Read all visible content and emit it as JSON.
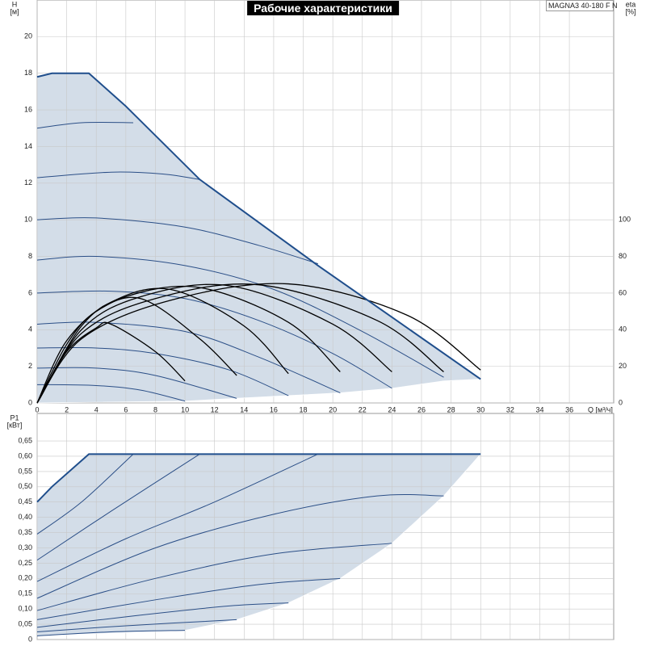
{
  "chart_data": [
    {
      "type": "line",
      "title": "Рабочие характеристики",
      "model": "MAGNA3 40-180 F N",
      "x_label": "Q [м³/ч]",
      "y_label": "H",
      "y_unit": "[м]",
      "y2_label": "eta",
      "y2_unit": "[%]",
      "xlim": [
        0,
        39
      ],
      "xticks": [
        0,
        2,
        4,
        6,
        8,
        10,
        12,
        14,
        16,
        18,
        20,
        22,
        24,
        26,
        28,
        30,
        32,
        34,
        36
      ],
      "ylim": [
        0,
        22
      ],
      "yticks": [
        0,
        2,
        4,
        6,
        8,
        10,
        12,
        14,
        16,
        18,
        20
      ],
      "y2lim": [
        0,
        220
      ],
      "y2ticks": [
        0,
        20,
        40,
        60,
        80,
        100
      ],
      "grid": true,
      "xtick_labels": true,
      "fill_color": "#d3dde8",
      "edge_color": "#1f4e8c",
      "envelope": {
        "x": [
          0,
          1,
          3.5,
          6,
          11,
          19,
          30
        ],
        "values": [
          17.8,
          18,
          18,
          16.2,
          12.2,
          7.5,
          1.3
        ]
      },
      "lower_edge": {
        "x": [
          0,
          10,
          13.5,
          17,
          20.5,
          24,
          27.5,
          30
        ],
        "values": [
          0,
          0.1,
          0.25,
          0.4,
          0.55,
          0.8,
          1.2,
          1.3
        ]
      },
      "series": [
        {
          "color": "#2b4f87",
          "x": [
            0,
            3,
            6.5
          ],
          "values": [
            15,
            15.3,
            15.3
          ]
        },
        {
          "color": "#2b4f87",
          "x": [
            0,
            5,
            8.5,
            11
          ],
          "values": [
            12.3,
            12.6,
            12.5,
            12.2
          ]
        },
        {
          "color": "#2b4f87",
          "x": [
            0,
            4,
            10,
            15,
            19
          ],
          "values": [
            10,
            10.1,
            9.6,
            8.6,
            7.6
          ]
        },
        {
          "color": "#2b4f87",
          "x": [
            0,
            4,
            10,
            16,
            22,
            27.5
          ],
          "values": [
            7.8,
            8,
            7.5,
            6.2,
            3.9,
            1.4
          ]
        },
        {
          "color": "#2b4f87",
          "x": [
            0,
            5,
            10,
            15,
            20,
            24
          ],
          "values": [
            6,
            6.1,
            5.7,
            4.5,
            2.7,
            0.8
          ]
        },
        {
          "color": "#2b4f87",
          "x": [
            0,
            4,
            10,
            15,
            20.5
          ],
          "values": [
            4.3,
            4.4,
            3.9,
            2.5,
            0.55
          ]
        },
        {
          "color": "#2b4f87",
          "x": [
            0,
            4,
            8,
            13,
            17
          ],
          "values": [
            3,
            3,
            2.7,
            1.8,
            0.4
          ]
        },
        {
          "color": "#2b4f87",
          "x": [
            0,
            4,
            8,
            13.5
          ],
          "values": [
            1.9,
            1.9,
            1.5,
            0.25
          ]
        },
        {
          "color": "#2b4f87",
          "x": [
            0,
            4,
            7,
            10
          ],
          "values": [
            1,
            0.95,
            0.7,
            0.1
          ]
        },
        {
          "color": "#000000",
          "axis": "y2",
          "x": [
            0,
            2,
            4,
            5,
            8,
            10
          ],
          "values": [
            0,
            28,
            41,
            43,
            28,
            12
          ]
        },
        {
          "color": "#000000",
          "axis": "y2",
          "x": [
            0,
            2,
            4,
            7,
            11,
            13.5
          ],
          "values": [
            0,
            32,
            50,
            57,
            35,
            15
          ]
        },
        {
          "color": "#000000",
          "axis": "y2",
          "x": [
            0,
            2,
            5,
            9,
            14,
            17
          ],
          "values": [
            0,
            34,
            55,
            62,
            42,
            16
          ]
        },
        {
          "color": "#000000",
          "axis": "y2",
          "x": [
            0,
            3,
            6,
            11,
            17,
            20.5
          ],
          "values": [
            0,
            42,
            58,
            63,
            44,
            17
          ]
        },
        {
          "color": "#000000",
          "axis": "y2",
          "x": [
            0,
            3,
            7,
            13,
            20,
            24
          ],
          "values": [
            0,
            40,
            58,
            64,
            43,
            17
          ]
        },
        {
          "color": "#000000",
          "axis": "y2",
          "x": [
            0,
            3,
            8,
            15,
            23,
            27.5
          ],
          "values": [
            0,
            38,
            57,
            64.5,
            45,
            17
          ]
        },
        {
          "color": "#000000",
          "axis": "y2",
          "x": [
            0,
            3,
            9,
            17,
            25,
            30
          ],
          "values": [
            0,
            35,
            56,
            65,
            48,
            18
          ]
        }
      ]
    },
    {
      "type": "line",
      "y_label": "P1",
      "y_unit": "[кВт]",
      "xlim": [
        0,
        39
      ],
      "xticks": [
        0,
        2,
        4,
        6,
        8,
        10,
        12,
        14,
        16,
        18,
        20,
        22,
        24,
        26,
        28,
        30,
        32,
        34,
        36
      ],
      "ylim": [
        0,
        0.74
      ],
      "yticks": [
        0,
        {
          "value": 0.05,
          "label": "0,05"
        },
        {
          "value": 0.1,
          "label": "0,10"
        },
        {
          "value": 0.15,
          "label": "0,15"
        },
        {
          "value": 0.2,
          "label": "0,20"
        },
        {
          "value": 0.25,
          "label": "0,25"
        },
        {
          "value": 0.3,
          "label": "0,30"
        },
        {
          "value": 0.35,
          "label": "0,35"
        },
        {
          "value": 0.4,
          "label": "0,40"
        },
        {
          "value": 0.45,
          "label": "0,45"
        },
        {
          "value": 0.5,
          "label": "0,50"
        },
        {
          "value": 0.55,
          "label": "0,55"
        },
        {
          "value": 0.6,
          "label": "0,60"
        },
        {
          "value": 0.65,
          "label": "0,65"
        }
      ],
      "grid": true,
      "xtick_labels": false,
      "fill_color": "#d3dde8",
      "edge_color": "#1f4e8c",
      "envelope": {
        "x": [
          0,
          1,
          3.5,
          30
        ],
        "values": [
          0.45,
          0.5,
          0.607,
          0.607
        ]
      },
      "lower_edge": {
        "x": [
          0,
          10,
          13.5,
          17,
          20.5,
          24,
          27.5,
          30
        ],
        "values": [
          0.012,
          0.03,
          0.065,
          0.12,
          0.2,
          0.315,
          0.47,
          0.607
        ]
      },
      "series": [
        {
          "color": "#2b4f87",
          "x": [
            0,
            3,
            6.5
          ],
          "values": [
            0.345,
            0.45,
            0.607
          ]
        },
        {
          "color": "#2b4f87",
          "x": [
            0,
            5,
            11
          ],
          "values": [
            0.26,
            0.42,
            0.607
          ]
        },
        {
          "color": "#2b4f87",
          "x": [
            0,
            6,
            12,
            19
          ],
          "values": [
            0.19,
            0.33,
            0.45,
            0.607
          ]
        },
        {
          "color": "#2b4f87",
          "x": [
            0,
            8,
            16,
            23,
            27.5
          ],
          "values": [
            0.135,
            0.3,
            0.41,
            0.47,
            0.47
          ]
        },
        {
          "color": "#2b4f87",
          "x": [
            0,
            8,
            16,
            24
          ],
          "values": [
            0.095,
            0.2,
            0.28,
            0.315
          ]
        },
        {
          "color": "#2b4f87",
          "x": [
            0,
            8,
            15,
            20.5
          ],
          "values": [
            0.065,
            0.13,
            0.18,
            0.2
          ]
        },
        {
          "color": "#2b4f87",
          "x": [
            0,
            7,
            13,
            17
          ],
          "values": [
            0.04,
            0.08,
            0.11,
            0.12
          ]
        },
        {
          "color": "#2b4f87",
          "x": [
            0,
            6,
            13.5
          ],
          "values": [
            0.025,
            0.045,
            0.065
          ]
        },
        {
          "color": "#2b4f87",
          "x": [
            0,
            5,
            10
          ],
          "values": [
            0.012,
            0.025,
            0.03
          ]
        }
      ]
    }
  ]
}
